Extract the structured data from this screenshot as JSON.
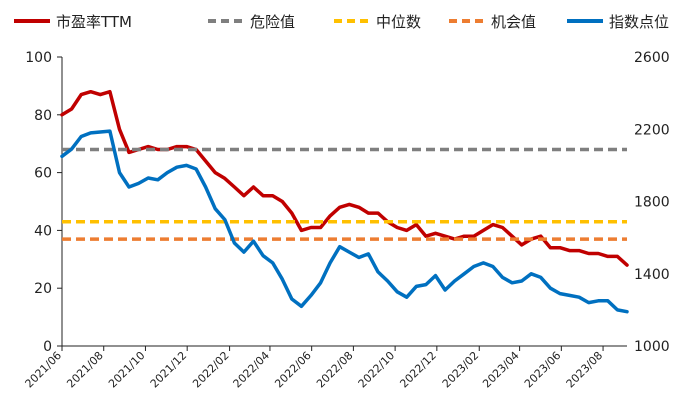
{
  "chart_data": {
    "type": "line",
    "title": "",
    "xlabel": "",
    "ylabel": "",
    "ylim_left": [
      0,
      100
    ],
    "ylim_right": [
      1000,
      2600
    ],
    "yticks_left": [
      0,
      20,
      40,
      60,
      80,
      100
    ],
    "yticks_right": [
      1000,
      1400,
      1800,
      2200,
      2600
    ],
    "x_tick_labels": [
      "2021/06",
      "2021/08",
      "2021/10",
      "2021/12",
      "2022/02",
      "2022/04",
      "2022/06",
      "2022/08",
      "2022/10",
      "2022/12",
      "2023/02",
      "2023/04",
      "2023/06",
      "2023/08"
    ],
    "grid": false,
    "legend_position": "top",
    "series": [
      {
        "name": "市盈率TTM",
        "axis": "left",
        "style": "solid",
        "color": "#C00000",
        "x": [
          "2021/06/01",
          "2021/06/15",
          "2021/06/29",
          "2021/07/13",
          "2021/07/27",
          "2021/08/10",
          "2021/08/24",
          "2021/09/07",
          "2021/09/21",
          "2021/10/05",
          "2021/10/19",
          "2021/11/02",
          "2021/11/16",
          "2021/11/30",
          "2021/12/14",
          "2021/12/28",
          "2022/01/11",
          "2022/01/25",
          "2022/02/08",
          "2022/02/22",
          "2022/03/08",
          "2022/03/22",
          "2022/04/05",
          "2022/04/19",
          "2022/05/03",
          "2022/05/17",
          "2022/05/31",
          "2022/06/14",
          "2022/06/28",
          "2022/07/12",
          "2022/07/26",
          "2022/08/09",
          "2022/08/23",
          "2022/09/06",
          "2022/09/20",
          "2022/10/04",
          "2022/10/18",
          "2022/11/01",
          "2022/11/15",
          "2022/11/29",
          "2022/12/13",
          "2022/12/27",
          "2023/01/10",
          "2023/01/24",
          "2023/02/07",
          "2023/02/21",
          "2023/03/07",
          "2023/03/21",
          "2023/04/04",
          "2023/04/18",
          "2023/05/02",
          "2023/05/16",
          "2023/05/30",
          "2023/06/13",
          "2023/06/27",
          "2023/07/11",
          "2023/07/25",
          "2023/08/08",
          "2023/08/22",
          "2023/09/05"
        ],
        "values": [
          80,
          82,
          87,
          88,
          87,
          88,
          75,
          67,
          68,
          69,
          68,
          68,
          69,
          69,
          68,
          64,
          60,
          58,
          55,
          52,
          55,
          52,
          52,
          50,
          46,
          40,
          41,
          41,
          45,
          48,
          49,
          48,
          46,
          46,
          43,
          41,
          40,
          42,
          38,
          39,
          38,
          37,
          38,
          38,
          40,
          42,
          41,
          38,
          35,
          37,
          38,
          34,
          34,
          33,
          33,
          32,
          32,
          31,
          31,
          28
        ]
      },
      {
        "name": "危险值",
        "axis": "left",
        "style": "dashed",
        "color": "#7F7F7F",
        "values": [
          68
        ]
      },
      {
        "name": "中位数",
        "axis": "left",
        "style": "dashed",
        "color": "#FFC000",
        "values": [
          43
        ]
      },
      {
        "name": "机会值",
        "axis": "left",
        "style": "dashed",
        "color": "#ED7D31",
        "values": [
          37
        ]
      },
      {
        "name": "指数点位",
        "axis": "right",
        "style": "solid",
        "color": "#0070C0",
        "x": [
          "2021/06/01",
          "2021/06/15",
          "2021/06/29",
          "2021/07/13",
          "2021/07/27",
          "2021/08/10",
          "2021/08/24",
          "2021/09/07",
          "2021/09/21",
          "2021/10/05",
          "2021/10/19",
          "2021/11/02",
          "2021/11/16",
          "2021/11/30",
          "2021/12/14",
          "2021/12/28",
          "2022/01/11",
          "2022/01/25",
          "2022/02/08",
          "2022/02/22",
          "2022/03/08",
          "2022/03/22",
          "2022/04/05",
          "2022/04/19",
          "2022/05/03",
          "2022/05/17",
          "2022/05/31",
          "2022/06/14",
          "2022/06/28",
          "2022/07/12",
          "2022/07/26",
          "2022/08/09",
          "2022/08/23",
          "2022/09/06",
          "2022/09/20",
          "2022/10/04",
          "2022/10/18",
          "2022/11/01",
          "2022/11/15",
          "2022/11/29",
          "2022/12/13",
          "2022/12/27",
          "2023/01/10",
          "2023/01/24",
          "2023/02/07",
          "2023/02/21",
          "2023/03/07",
          "2023/03/21",
          "2023/04/04",
          "2023/04/18",
          "2023/05/02",
          "2023/05/16",
          "2023/05/30",
          "2023/06/13",
          "2023/06/27",
          "2023/07/11",
          "2023/07/25",
          "2023/08/08",
          "2023/08/22",
          "2023/09/05"
        ],
        "values": [
          2050,
          2090,
          2160,
          2180,
          2185,
          2190,
          1960,
          1880,
          1900,
          1930,
          1920,
          1960,
          1990,
          2000,
          1980,
          1880,
          1760,
          1700,
          1570,
          1520,
          1580,
          1500,
          1460,
          1370,
          1260,
          1220,
          1280,
          1350,
          1460,
          1550,
          1520,
          1490,
          1510,
          1410,
          1360,
          1300,
          1270,
          1330,
          1340,
          1390,
          1310,
          1360,
          1400,
          1440,
          1460,
          1440,
          1380,
          1350,
          1360,
          1400,
          1380,
          1320,
          1290,
          1280,
          1270,
          1240,
          1250,
          1250,
          1200,
          1190
        ]
      }
    ]
  }
}
